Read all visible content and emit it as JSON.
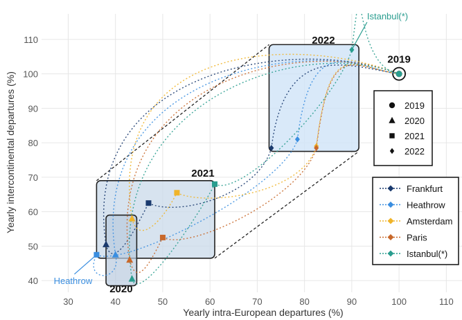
{
  "chart_data": {
    "type": "scatter",
    "xlabel": "Yearly intra-European departures (%)",
    "ylabel": "Yearly intercontinental departures (%)",
    "xlim": [
      27,
      112
    ],
    "ylim": [
      36,
      113
    ],
    "x_ticks": [
      30,
      40,
      50,
      60,
      70,
      80,
      90,
      100,
      110
    ],
    "y_ticks": [
      40,
      50,
      60,
      70,
      80,
      90,
      100,
      110
    ],
    "grid": true,
    "years": [
      {
        "label": "2019",
        "marker": "circle"
      },
      {
        "label": "2020",
        "marker": "triangle"
      },
      {
        "label": "2021",
        "marker": "square"
      },
      {
        "label": "2022",
        "marker": "diamond"
      }
    ],
    "series": [
      {
        "name": "Frankfurt",
        "color": "#1a3a6e",
        "points": [
          [
            100,
            100
          ],
          [
            38,
            50.5
          ],
          [
            47,
            62.5
          ],
          [
            73,
            78.5
          ]
        ]
      },
      {
        "name": "Heathrow",
        "color": "#3a8ee0",
        "points": [
          [
            100,
            100
          ],
          [
            40,
            47.5
          ],
          [
            36,
            47.5
          ],
          [
            78.5,
            81
          ]
        ]
      },
      {
        "name": "Amsterdam",
        "color": "#f0b429",
        "points": [
          [
            100,
            100
          ],
          [
            43.5,
            58
          ],
          [
            53,
            65.5
          ],
          [
            82.5,
            79
          ]
        ]
      },
      {
        "name": "Paris",
        "color": "#c8682a",
        "points": [
          [
            100,
            100
          ],
          [
            43,
            46
          ],
          [
            50,
            52.5
          ],
          [
            82.5,
            78.5
          ]
        ]
      },
      {
        "name": "Istanbul(*)",
        "color": "#2a9d8f",
        "points": [
          [
            100,
            100
          ],
          [
            43.5,
            40.5
          ],
          [
            61,
            68
          ],
          [
            90,
            107
          ]
        ]
      }
    ],
    "group_labels": {
      "2019": "2019",
      "2020": "2020",
      "2021": "2021",
      "2022": "2022"
    },
    "annotations": [
      {
        "text": "Istanbul(*)",
        "color": "#2a9d8f",
        "x": 90,
        "y": 107
      },
      {
        "text": "Heathrow",
        "color": "#3a8ee0",
        "x": 36,
        "y": 47.5
      }
    ],
    "legend_placement": "right"
  }
}
